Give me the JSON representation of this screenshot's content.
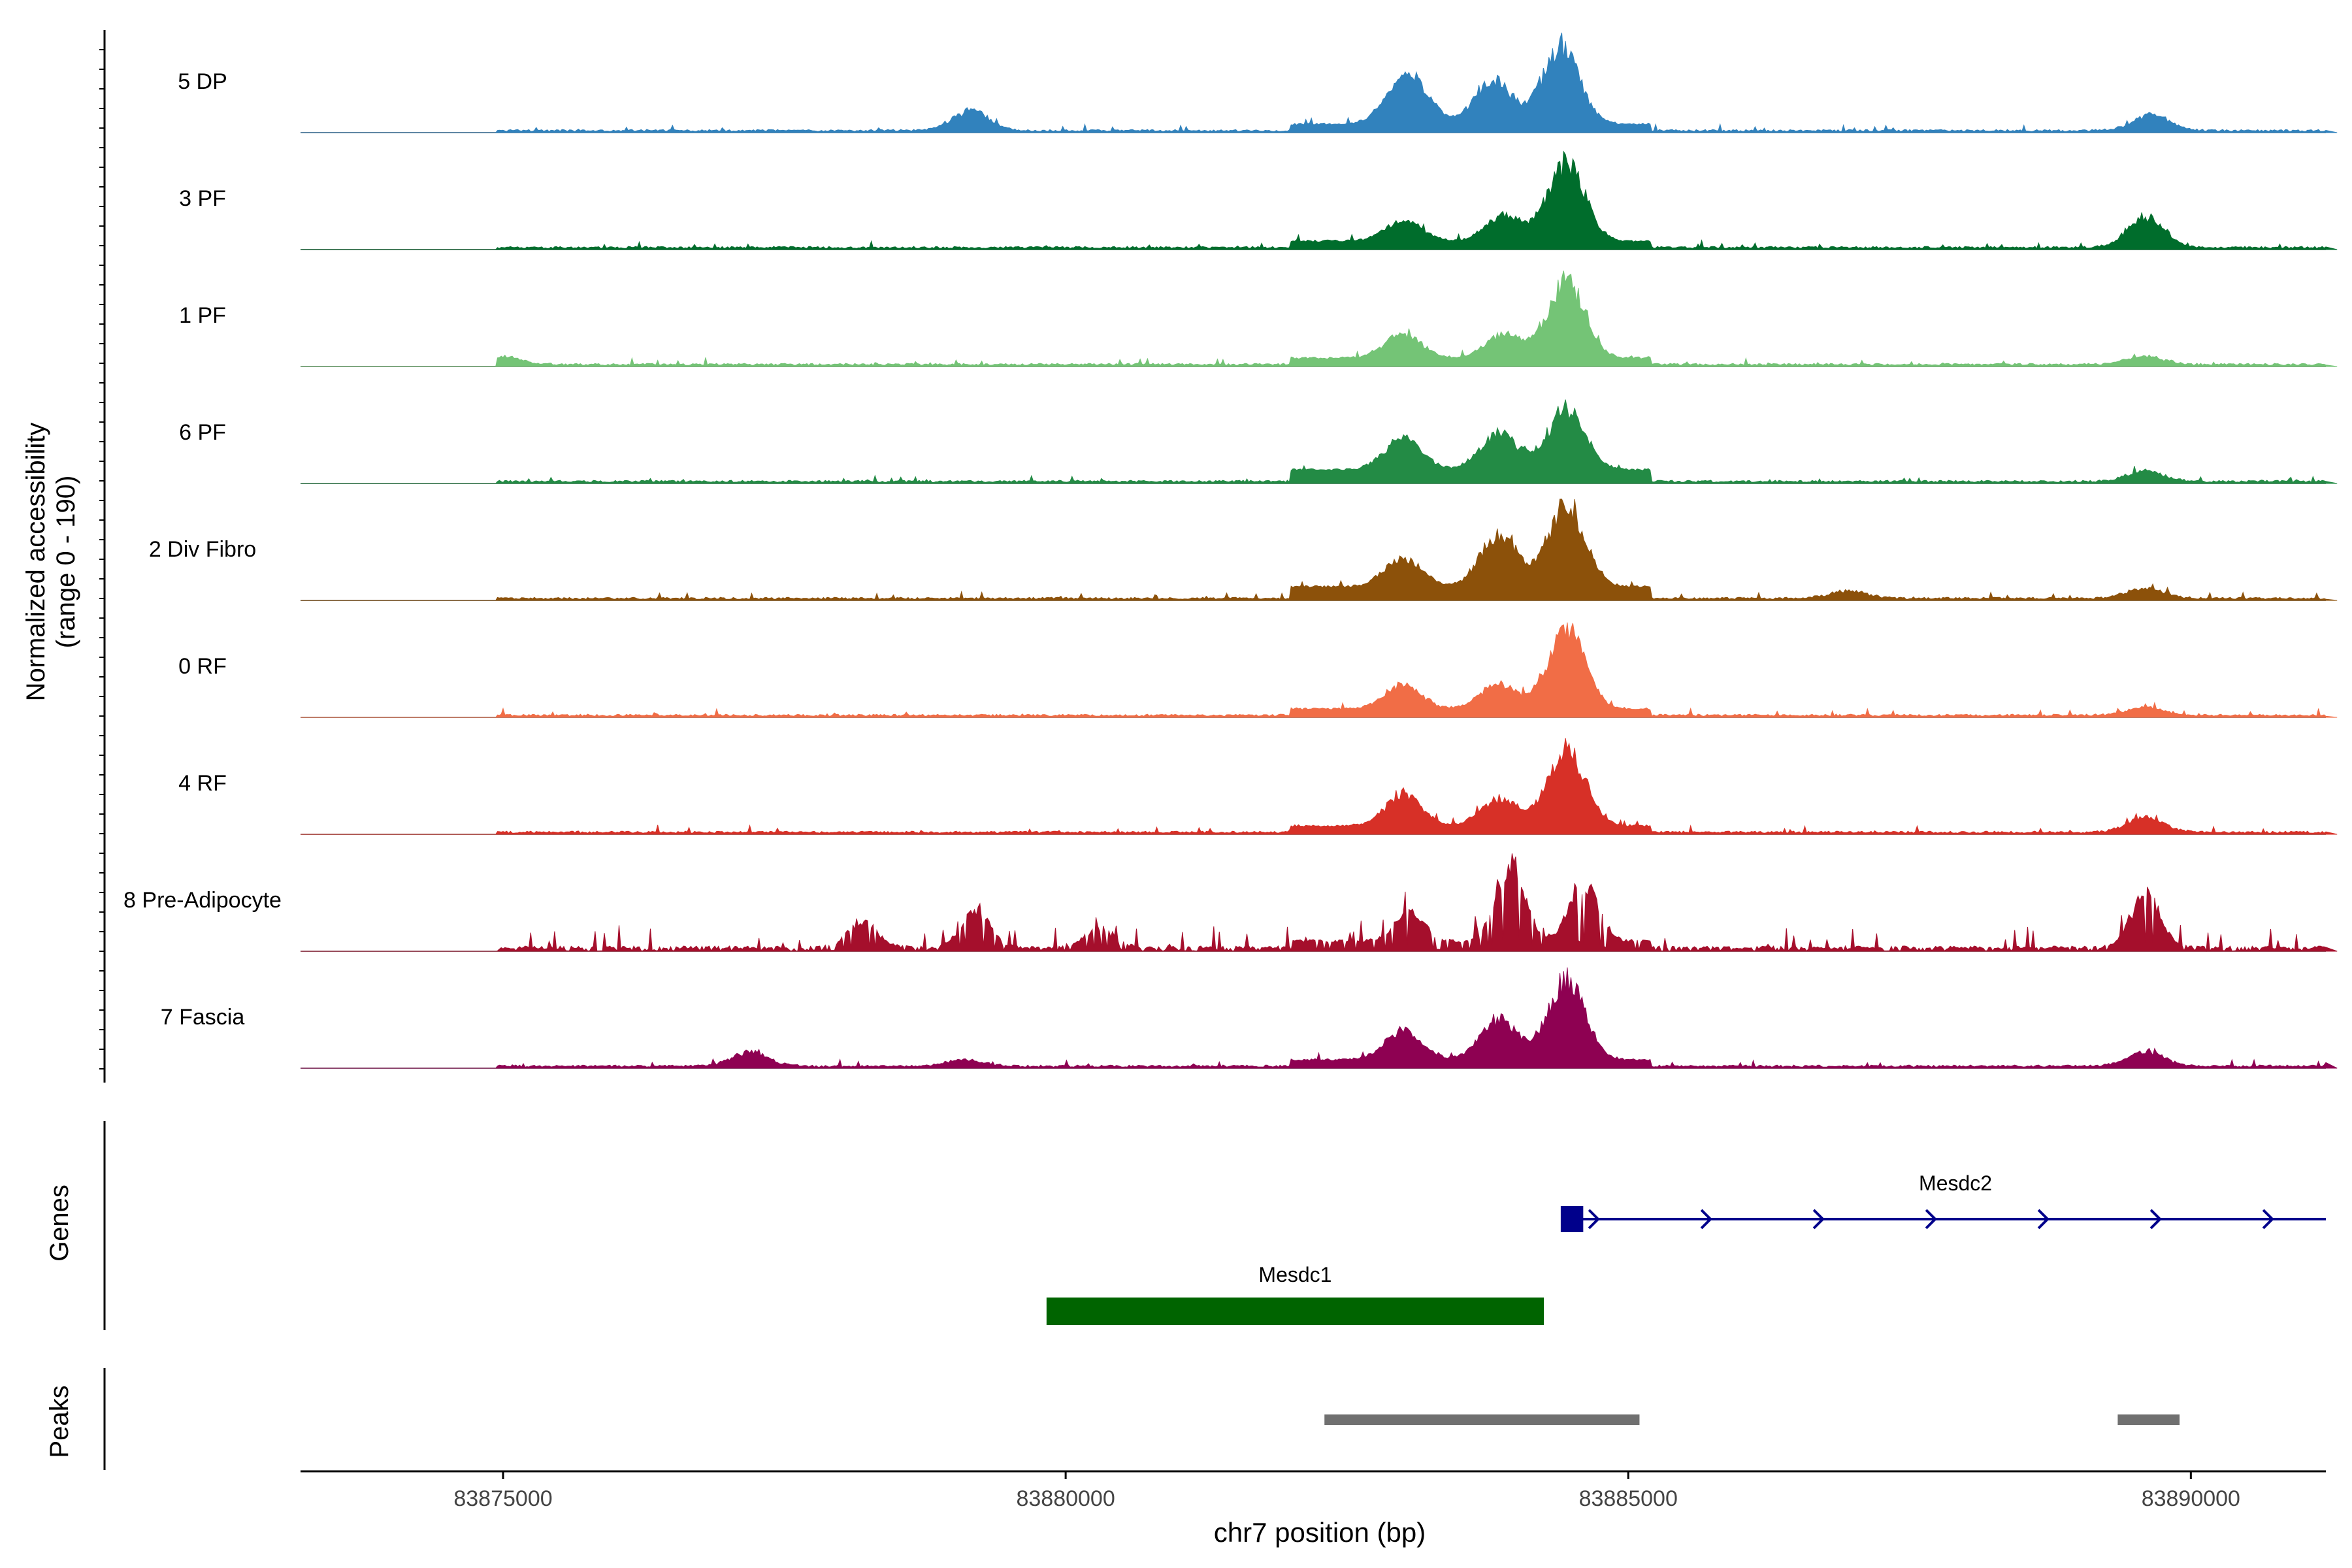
{
  "chart_data": {
    "type": "area",
    "subtype": "genome-coverage-track",
    "y_axis_label_line1": "Normalized accessibility",
    "y_axis_label_line2": "(range 0 - 190)",
    "y_range": [
      0,
      190
    ],
    "x_axis_label": "chr7 position (bp)",
    "x_range": [
      83873200,
      83891200
    ],
    "x_ticks": [
      83875000,
      83880000,
      83885000,
      83890000
    ],
    "x_tick_labels": [
      "83875000",
      "83880000",
      "83885000",
      "83890000"
    ],
    "tracks": [
      {
        "name": "5 DP",
        "color": "#3182BD",
        "profile": "dp",
        "peaks": [
          [
            83884400,
            150
          ],
          [
            83883800,
            85
          ],
          [
            83883100,
            62
          ],
          [
            83882950,
            42
          ],
          [
            83879150,
            38
          ],
          [
            83889650,
            30
          ]
        ]
      },
      {
        "name": "3 PF",
        "color": "#006D2C",
        "profile": "standard",
        "peaks": [
          [
            83884450,
            150
          ],
          [
            83883900,
            48
          ],
          [
            83883000,
            40
          ],
          [
            83889600,
            58
          ]
        ]
      },
      {
        "name": "1 PF",
        "color": "#74C476",
        "profile": "standard",
        "peaks": [
          [
            83884450,
            150
          ],
          [
            83883900,
            45
          ],
          [
            83883000,
            48
          ],
          [
            83875000,
            16
          ],
          [
            83889600,
            16
          ]
        ]
      },
      {
        "name": "6 PF",
        "color": "#238B45",
        "profile": "wide",
        "peaks": [
          [
            83884450,
            118
          ],
          [
            83883850,
            70
          ],
          [
            83883000,
            60
          ],
          [
            83889600,
            20
          ]
        ]
      },
      {
        "name": "2 Div Fibro",
        "color": "#8C510A",
        "profile": "divfibro",
        "peaks": [
          [
            83884450,
            160
          ],
          [
            83883850,
            100
          ],
          [
            83883000,
            55
          ],
          [
            83889600,
            20
          ],
          [
            83886950,
            14
          ]
        ]
      },
      {
        "name": "0 RF",
        "color": "#F16D46",
        "profile": "standard",
        "peaks": [
          [
            83884450,
            152
          ],
          [
            83883850,
            48
          ],
          [
            83883000,
            45
          ],
          [
            83889600,
            16
          ]
        ]
      },
      {
        "name": "4 RF",
        "color": "#D73027",
        "profile": "standard",
        "peaks": [
          [
            83884450,
            150
          ],
          [
            83883850,
            52
          ],
          [
            83883000,
            58
          ],
          [
            83889600,
            28
          ]
        ]
      },
      {
        "name": "8 Pre-Adipocyte",
        "color": "#A50F2C",
        "profile": "spiky",
        "peaks": [
          [
            83883950,
            148
          ],
          [
            83884600,
            110
          ],
          [
            83889600,
            105
          ],
          [
            83879200,
            70
          ],
          [
            83878200,
            52
          ],
          [
            83883050,
            55
          ],
          [
            83880300,
            38
          ]
        ]
      },
      {
        "name": "7 Fascia",
        "color": "#8E0152",
        "profile": "fascia",
        "peaks": [
          [
            83884450,
            150
          ],
          [
            83883850,
            78
          ],
          [
            83883000,
            55
          ],
          [
            83877200,
            26
          ],
          [
            83889600,
            28
          ],
          [
            83879100,
            12
          ]
        ]
      }
    ],
    "genes_track_label": "Genes",
    "genes": [
      {
        "name": "Mesdc2",
        "start": 83884500,
        "end": 83891200,
        "strand": "+",
        "color": "#00008B",
        "exon": [
          83884400,
          83884600
        ]
      },
      {
        "name": "Mesdc1",
        "start": 83879830,
        "end": 83884250,
        "strand": "",
        "color": "#006400"
      }
    ],
    "peaks_track_label": "Peaks",
    "peak_regions": [
      {
        "start": 83882300,
        "end": 83885100,
        "color": "#707070"
      },
      {
        "start": 83889350,
        "end": 83889900,
        "color": "#707070"
      }
    ]
  }
}
